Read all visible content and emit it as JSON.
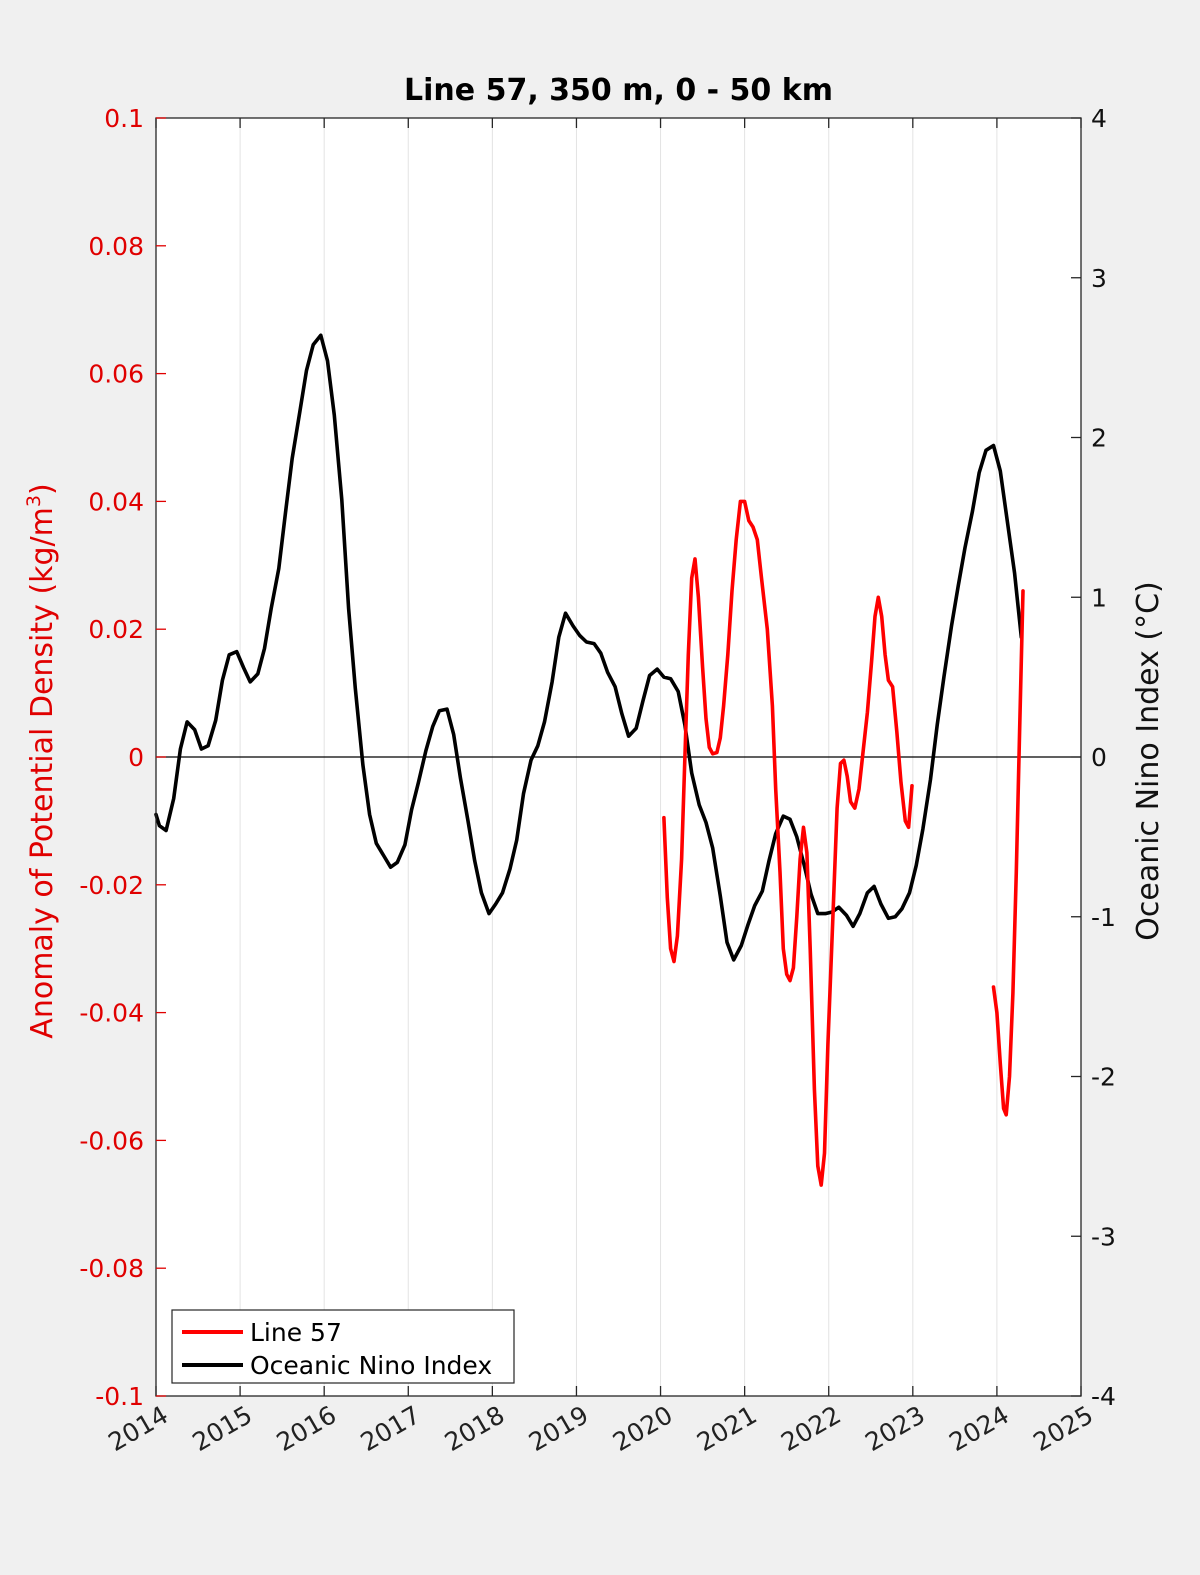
{
  "chart_data": {
    "type": "line",
    "title": "Line 57, 350 m, 0 - 50 km",
    "ylabel_left": "Anomaly of Potential Density (kg/m",
    "ylabel_left_sup": "3",
    "ylabel_left_close": ")",
    "ylabel_right": "Oceanic Nino Index (°C)",
    "xlim": [
      2014,
      2025
    ],
    "ylim_left": [
      -0.1,
      0.1
    ],
    "ylim_right": [
      -4,
      4
    ],
    "x_ticks": [
      "2014",
      "2015",
      "2016",
      "2017",
      "2018",
      "2019",
      "2020",
      "2021",
      "2022",
      "2023",
      "2024",
      "2025"
    ],
    "y_ticks_left": [
      "-0.1",
      "-0.08",
      "-0.06",
      "-0.04",
      "-0.02",
      "0",
      "0.02",
      "0.04",
      "0.06",
      "0.08",
      "0.1"
    ],
    "y_ticks_right": [
      "-4",
      "-3",
      "-2",
      "-1",
      "0",
      "1",
      "2",
      "3",
      "4"
    ],
    "grid": "vertical",
    "legend_position": "bottom-left",
    "colors": {
      "line57": "#ff0000",
      "oni": "#000000",
      "left_axis": "#e00000"
    },
    "series": [
      {
        "name": "Line 57",
        "axis": "left",
        "segments": [
          [
            [
              2020.04,
              -0.0095
            ],
            [
              2020.08,
              -0.022
            ],
            [
              2020.12,
              -0.03
            ],
            [
              2020.16,
              -0.032
            ],
            [
              2020.2,
              -0.028
            ],
            [
              2020.25,
              -0.016
            ],
            [
              2020.29,
              0.0
            ],
            [
              2020.33,
              0.016
            ],
            [
              2020.37,
              0.028
            ],
            [
              2020.41,
              0.031
            ],
            [
              2020.45,
              0.025
            ],
            [
              2020.5,
              0.014
            ],
            [
              2020.54,
              0.006
            ],
            [
              2020.58,
              0.0015
            ],
            [
              2020.62,
              0.0005
            ],
            [
              2020.67,
              0.0007
            ],
            [
              2020.71,
              0.003
            ],
            [
              2020.75,
              0.008
            ],
            [
              2020.8,
              0.016
            ],
            [
              2020.85,
              0.026
            ],
            [
              2020.9,
              0.034
            ],
            [
              2020.95,
              0.04
            ],
            [
              2021.0,
              0.04
            ],
            [
              2021.05,
              0.037
            ],
            [
              2021.1,
              0.036
            ],
            [
              2021.15,
              0.034
            ],
            [
              2021.2,
              0.028
            ],
            [
              2021.27,
              0.02
            ],
            [
              2021.33,
              0.008
            ],
            [
              2021.37,
              -0.005
            ],
            [
              2021.42,
              -0.018
            ],
            [
              2021.46,
              -0.03
            ],
            [
              2021.5,
              -0.034
            ],
            [
              2021.54,
              -0.035
            ],
            [
              2021.58,
              -0.033
            ],
            [
              2021.62,
              -0.025
            ],
            [
              2021.66,
              -0.016
            ],
            [
              2021.7,
              -0.011
            ],
            [
              2021.74,
              -0.015
            ],
            [
              2021.78,
              -0.03
            ],
            [
              2021.83,
              -0.052
            ],
            [
              2021.87,
              -0.064
            ],
            [
              2021.91,
              -0.067
            ],
            [
              2021.95,
              -0.062
            ],
            [
              2021.99,
              -0.045
            ],
            [
              2022.05,
              -0.025
            ],
            [
              2022.1,
              -0.008
            ],
            [
              2022.14,
              -0.001
            ],
            [
              2022.18,
              -0.0005
            ],
            [
              2022.22,
              -0.003
            ],
            [
              2022.26,
              -0.007
            ],
            [
              2022.31,
              -0.008
            ],
            [
              2022.36,
              -0.005
            ],
            [
              2022.41,
              0.001
            ],
            [
              2022.46,
              0.007
            ],
            [
              2022.51,
              0.015
            ],
            [
              2022.55,
              0.022
            ],
            [
              2022.59,
              0.025
            ],
            [
              2022.63,
              0.022
            ],
            [
              2022.67,
              0.016
            ],
            [
              2022.71,
              0.012
            ],
            [
              2022.76,
              0.011
            ],
            [
              2022.81,
              0.004
            ],
            [
              2022.86,
              -0.004
            ],
            [
              2022.91,
              -0.01
            ],
            [
              2022.95,
              -0.011
            ],
            [
              2022.99,
              -0.0045
            ]
          ],
          [
            [
              2023.96,
              -0.036
            ],
            [
              2024.0,
              -0.04
            ],
            [
              2024.04,
              -0.048
            ],
            [
              2024.08,
              -0.055
            ],
            [
              2024.11,
              -0.056
            ],
            [
              2024.15,
              -0.05
            ],
            [
              2024.19,
              -0.037
            ],
            [
              2024.23,
              -0.018
            ],
            [
              2024.27,
              0.004
            ],
            [
              2024.31,
              0.026
            ]
          ]
        ]
      },
      {
        "name": "Oceanic Nino Index",
        "axis": "right",
        "segments": [
          [
            [
              2014.0,
              -0.36
            ],
            [
              2014.04,
              -0.43
            ],
            [
              2014.12,
              -0.46
            ],
            [
              2014.21,
              -0.26
            ],
            [
              2014.29,
              0.05
            ],
            [
              2014.37,
              0.22
            ],
            [
              2014.46,
              0.17
            ],
            [
              2014.54,
              0.05
            ],
            [
              2014.62,
              0.07
            ],
            [
              2014.71,
              0.23
            ],
            [
              2014.79,
              0.48
            ],
            [
              2014.87,
              0.64
            ],
            [
              2014.96,
              0.66
            ],
            [
              2015.04,
              0.56
            ],
            [
              2015.12,
              0.47
            ],
            [
              2015.21,
              0.52
            ],
            [
              2015.29,
              0.68
            ],
            [
              2015.37,
              0.93
            ],
            [
              2015.46,
              1.18
            ],
            [
              2015.54,
              1.53
            ],
            [
              2015.62,
              1.87
            ],
            [
              2015.71,
              2.16
            ],
            [
              2015.79,
              2.42
            ],
            [
              2015.87,
              2.58
            ],
            [
              2015.96,
              2.64
            ],
            [
              2016.04,
              2.48
            ],
            [
              2016.12,
              2.14
            ],
            [
              2016.21,
              1.61
            ],
            [
              2016.29,
              0.93
            ],
            [
              2016.37,
              0.43
            ],
            [
              2016.46,
              -0.05
            ],
            [
              2016.54,
              -0.36
            ],
            [
              2016.62,
              -0.54
            ],
            [
              2016.71,
              -0.62
            ],
            [
              2016.79,
              -0.69
            ],
            [
              2016.87,
              -0.66
            ],
            [
              2016.96,
              -0.55
            ],
            [
              2017.04,
              -0.33
            ],
            [
              2017.12,
              -0.16
            ],
            [
              2017.21,
              0.04
            ],
            [
              2017.29,
              0.19
            ],
            [
              2017.37,
              0.29
            ],
            [
              2017.46,
              0.3
            ],
            [
              2017.54,
              0.14
            ],
            [
              2017.62,
              -0.13
            ],
            [
              2017.71,
              -0.4
            ],
            [
              2017.79,
              -0.65
            ],
            [
              2017.87,
              -0.85
            ],
            [
              2017.96,
              -0.98
            ],
            [
              2018.04,
              -0.92
            ],
            [
              2018.12,
              -0.85
            ],
            [
              2018.21,
              -0.7
            ],
            [
              2018.29,
              -0.52
            ],
            [
              2018.37,
              -0.23
            ],
            [
              2018.46,
              -0.02
            ],
            [
              2018.54,
              0.07
            ],
            [
              2018.62,
              0.22
            ],
            [
              2018.71,
              0.47
            ],
            [
              2018.79,
              0.75
            ],
            [
              2018.87,
              0.9
            ],
            [
              2018.96,
              0.82
            ],
            [
              2019.04,
              0.76
            ],
            [
              2019.12,
              0.72
            ],
            [
              2019.21,
              0.71
            ],
            [
              2019.29,
              0.65
            ],
            [
              2019.37,
              0.53
            ],
            [
              2019.46,
              0.44
            ],
            [
              2019.54,
              0.27
            ],
            [
              2019.62,
              0.13
            ],
            [
              2019.71,
              0.18
            ],
            [
              2019.79,
              0.35
            ],
            [
              2019.87,
              0.51
            ],
            [
              2019.96,
              0.55
            ],
            [
              2020.04,
              0.5
            ],
            [
              2020.12,
              0.49
            ],
            [
              2020.21,
              0.41
            ],
            [
              2020.29,
              0.2
            ],
            [
              2020.37,
              -0.1
            ],
            [
              2020.46,
              -0.3
            ],
            [
              2020.54,
              -0.41
            ],
            [
              2020.62,
              -0.57
            ],
            [
              2020.71,
              -0.87
            ],
            [
              2020.79,
              -1.16
            ],
            [
              2020.87,
              -1.27
            ],
            [
              2020.96,
              -1.18
            ],
            [
              2021.04,
              -1.05
            ],
            [
              2021.12,
              -0.93
            ],
            [
              2021.21,
              -0.84
            ],
            [
              2021.29,
              -0.65
            ],
            [
              2021.37,
              -0.48
            ],
            [
              2021.46,
              -0.37
            ],
            [
              2021.54,
              -0.39
            ],
            [
              2021.62,
              -0.5
            ],
            [
              2021.71,
              -0.68
            ],
            [
              2021.79,
              -0.86
            ],
            [
              2021.87,
              -0.98
            ],
            [
              2021.96,
              -0.98
            ],
            [
              2022.04,
              -0.97
            ],
            [
              2022.12,
              -0.94
            ],
            [
              2022.21,
              -0.99
            ],
            [
              2022.29,
              -1.06
            ],
            [
              2022.37,
              -0.98
            ],
            [
              2022.46,
              -0.85
            ],
            [
              2022.54,
              -0.81
            ],
            [
              2022.62,
              -0.92
            ],
            [
              2022.71,
              -1.01
            ],
            [
              2022.79,
              -1.0
            ],
            [
              2022.87,
              -0.95
            ],
            [
              2022.96,
              -0.85
            ],
            [
              2023.04,
              -0.68
            ],
            [
              2023.12,
              -0.45
            ],
            [
              2023.21,
              -0.14
            ],
            [
              2023.29,
              0.2
            ],
            [
              2023.37,
              0.5
            ],
            [
              2023.46,
              0.82
            ],
            [
              2023.54,
              1.07
            ],
            [
              2023.62,
              1.31
            ],
            [
              2023.71,
              1.54
            ],
            [
              2023.79,
              1.78
            ],
            [
              2023.87,
              1.92
            ],
            [
              2023.96,
              1.95
            ],
            [
              2024.04,
              1.79
            ],
            [
              2024.12,
              1.49
            ],
            [
              2024.21,
              1.15
            ],
            [
              2024.29,
              0.75
            ]
          ]
        ]
      }
    ]
  }
}
